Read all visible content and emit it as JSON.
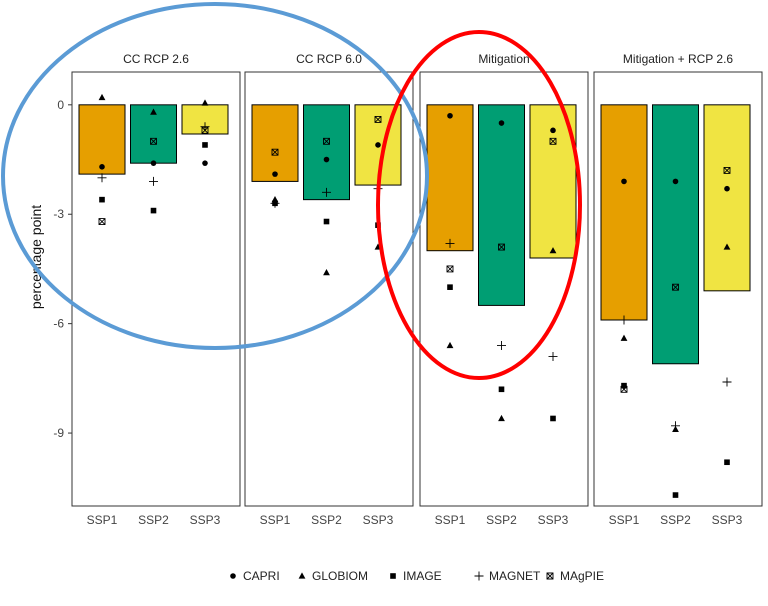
{
  "chart_data": {
    "type": "bar",
    "ylabel": "percentage point",
    "ylim": [
      -11,
      0.9
    ],
    "yticks": [
      0,
      -3,
      -6,
      -9
    ],
    "ytick_labels": [
      "0",
      "-3",
      "-6",
      "-9"
    ],
    "categories": [
      "SSP1",
      "SSP2",
      "SSP3"
    ],
    "category_colors": {
      "SSP1": "#E69F00",
      "SSP2": "#009E73",
      "SSP3": "#F0E442"
    },
    "legend_position": "bottom",
    "legend": [
      {
        "model": "CAPRI",
        "marker": "circle"
      },
      {
        "model": "GLOBIOM",
        "marker": "triangle"
      },
      {
        "model": "IMAGE",
        "marker": "square"
      },
      {
        "model": "MAGNET",
        "marker": "plus"
      },
      {
        "model": "MAgPIE",
        "marker": "boxed-x"
      }
    ],
    "panels": [
      {
        "title": "CC RCP 2.6",
        "bars": [
          -1.9,
          -1.6,
          -0.8
        ],
        "points": {
          "SSP1": {
            "CAPRI": -1.7,
            "GLOBIOM": 0.2,
            "IMAGE": -2.6,
            "MAGNET": -2.0,
            "MAgPIE": -3.2
          },
          "SSP2": {
            "CAPRI": -1.6,
            "GLOBIOM": -0.2,
            "IMAGE": -2.9,
            "MAGNET": -2.1,
            "MAgPIE": -1.0
          },
          "SSP3": {
            "CAPRI": -1.6,
            "GLOBIOM": 0.05,
            "IMAGE": -1.1,
            "MAGNET": -0.6,
            "MAgPIE": -0.7
          }
        }
      },
      {
        "title": "CC RCP 6.0",
        "bars": [
          -2.1,
          -2.6,
          -2.2
        ],
        "points": {
          "SSP1": {
            "CAPRI": -1.9,
            "GLOBIOM": -2.6,
            "IMAGE": -2.7,
            "MAGNET": -2.7,
            "MAgPIE": -1.3
          },
          "SSP2": {
            "CAPRI": -1.5,
            "GLOBIOM": -4.6,
            "IMAGE": -3.2,
            "MAGNET": -2.4,
            "MAgPIE": -1.0
          },
          "SSP3": {
            "CAPRI": -1.1,
            "GLOBIOM": -3.9,
            "IMAGE": -3.3,
            "MAGNET": -2.3,
            "MAgPIE": -0.4
          }
        }
      },
      {
        "title": "Mitigation",
        "bars": [
          -4.0,
          -5.5,
          -4.2
        ],
        "points": {
          "SSP1": {
            "CAPRI": -0.3,
            "GLOBIOM": -6.6,
            "IMAGE": -5.0,
            "MAGNET": -3.8,
            "MAgPIE": -4.5
          },
          "SSP2": {
            "CAPRI": -0.5,
            "GLOBIOM": -8.6,
            "IMAGE": -7.8,
            "MAGNET": -6.6,
            "MAgPIE": -3.9
          },
          "SSP3": {
            "CAPRI": -0.7,
            "GLOBIOM": -4.0,
            "IMAGE": -8.6,
            "MAGNET": -6.9,
            "MAgPIE": -1.0
          }
        }
      },
      {
        "title": "Mitigation + RCP 2.6",
        "bars": [
          -5.9,
          -7.1,
          -5.1
        ],
        "points": {
          "SSP1": {
            "CAPRI": -2.1,
            "GLOBIOM": -6.4,
            "IMAGE": -7.7,
            "MAGNET": -5.9,
            "MAgPIE": -7.8
          },
          "SSP2": {
            "CAPRI": -2.1,
            "GLOBIOM": -8.9,
            "IMAGE": -10.7,
            "MAGNET": -8.8,
            "MAgPIE": -5.0
          },
          "SSP3": {
            "CAPRI": -2.3,
            "GLOBIOM": -3.9,
            "IMAGE": -9.8,
            "MAGNET": -7.6,
            "MAgPIE": -1.8
          }
        }
      }
    ]
  },
  "annotations": [
    {
      "shape": "ellipse",
      "color": "#5B9BD5"
    },
    {
      "shape": "ellipse",
      "color": "#FF0000"
    }
  ]
}
